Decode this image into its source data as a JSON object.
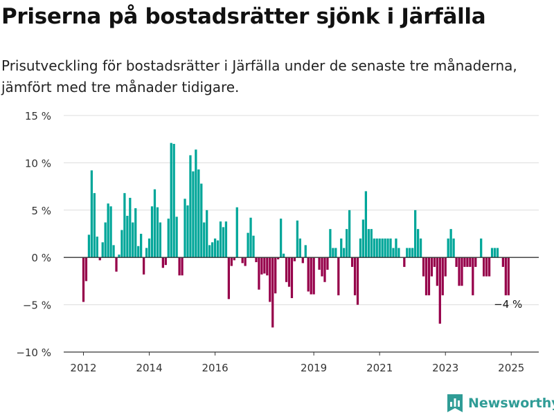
{
  "header": {
    "title": "Priserna på bostadsrätter sjönk i Järfälla",
    "subtitle": "Prisutveckling för bostadsrätter i Järfälla under de senaste tre månaderna, jämfört med tre månader tidigare."
  },
  "brand": {
    "name": "Newsworthy",
    "logo_icon": "bar-chart-bookmark-icon"
  },
  "colors": {
    "positive": "#00a699",
    "negative": "#96004a",
    "grid": "#dcdcdc",
    "axis": "#333333"
  },
  "chart_data": {
    "type": "bar",
    "title": "",
    "xlabel": "",
    "ylabel": "",
    "ylim": [
      -10,
      15
    ],
    "yticks": [
      -10,
      -5,
      0,
      5,
      10,
      15
    ],
    "ytick_labels": [
      "−10 %",
      "−5 %",
      "0 %",
      "5 %",
      "10 %",
      "15 %"
    ],
    "xticks": [
      2012,
      2014,
      2016,
      2019,
      2021,
      2023,
      2025
    ],
    "xtick_labels": [
      "2012",
      "2014",
      "2016",
      "2019",
      "2021",
      "2023",
      "2025"
    ],
    "x_start": "2012-01",
    "frequency": "monthly",
    "grid": true,
    "annotation": {
      "text": "−4 %",
      "at": "last"
    },
    "values": [
      -4.7,
      -2.5,
      2.4,
      9.2,
      6.8,
      2.2,
      -0.3,
      1.6,
      3.7,
      5.7,
      5.4,
      1.3,
      -1.5,
      0.3,
      2.9,
      6.8,
      4.4,
      6.3,
      3.7,
      5.2,
      1.2,
      2.5,
      -1.8,
      1.0,
      2.0,
      5.4,
      7.2,
      5.3,
      3.7,
      -1.1,
      -0.8,
      4.1,
      12.1,
      12.0,
      4.3,
      -1.9,
      -1.9,
      6.2,
      5.5,
      10.8,
      9.1,
      11.4,
      9.3,
      7.8,
      3.7,
      5.0,
      1.3,
      1.6,
      2.0,
      1.8,
      3.8,
      3.2,
      3.8,
      -4.4,
      -0.9,
      -0.3,
      5.3,
      0.0,
      -0.6,
      -0.9,
      2.6,
      4.2,
      2.3,
      -0.5,
      -3.4,
      -1.8,
      -1.7,
      -1.9,
      -4.7,
      -7.4,
      -3.8,
      -0.2,
      4.1,
      0.4,
      -2.6,
      -3.1,
      -4.3,
      -0.4,
      3.9,
      2.0,
      -0.6,
      1.3,
      -3.6,
      -3.9,
      -3.9,
      0.0,
      -1.3,
      -2.0,
      -2.6,
      -1.3,
      3.0,
      1.0,
      1.0,
      -4.0,
      2.0,
      1.0,
      3.0,
      5.0,
      -1.0,
      -4.0,
      -5.0,
      2.0,
      4.0,
      7.0,
      3.0,
      3.0,
      2.0,
      2.0,
      2.0,
      2.0,
      2.0,
      2.0,
      2.0,
      1.0,
      2.0,
      1.0,
      0.0,
      -1.0,
      1.0,
      1.0,
      1.0,
      5.0,
      3.0,
      2.0,
      -2.0,
      -4.0,
      -4.0,
      -2.0,
      -1.0,
      -3.0,
      -7.0,
      -4.0,
      -2.0,
      2.0,
      3.0,
      2.0,
      -1.0,
      -3.0,
      -3.0,
      -1.0,
      -1.0,
      -1.0,
      -4.0,
      -1.0,
      0.0,
      2.0,
      -2.0,
      -2.0,
      -2.0,
      1.0,
      1.0,
      1.0,
      0.0,
      -1.0,
      -4.0,
      -4.0
    ]
  }
}
